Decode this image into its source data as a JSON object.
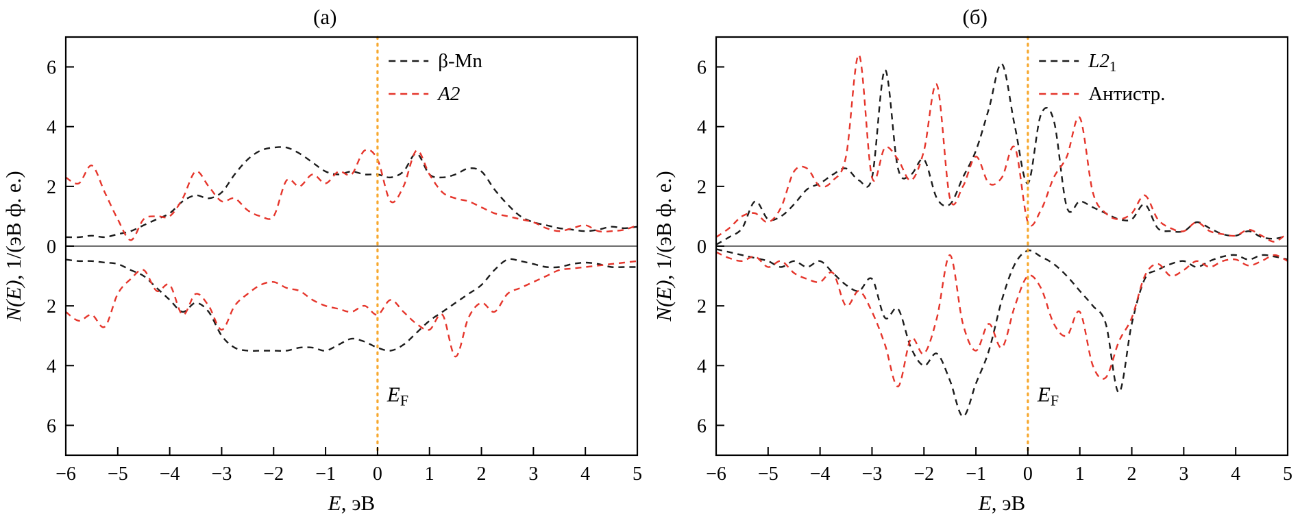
{
  "figure": {
    "background": "#ffffff"
  },
  "colors": {
    "black_series": "#1c1c1c",
    "red_series": "#e5352b",
    "fermi_line": "#f7a82e",
    "frame": "#000000",
    "zero_line": "#3c3c3c"
  },
  "chart_data": [
    {
      "type": "line",
      "title": "(а)",
      "xlabel": {
        "math": "E",
        "rest": ", эВ"
      },
      "ylabel": {
        "math": "N(E)",
        "rest": ", 1/(эВ ф. е.)"
      },
      "xlim": [
        -6,
        5
      ],
      "ylim": [
        -7,
        7
      ],
      "xticks": [
        -6,
        -5,
        -4,
        -3,
        -2,
        -1,
        0,
        1,
        2,
        3,
        4,
        5
      ],
      "yticks": [
        6,
        4,
        2,
        0,
        -2,
        -4,
        -6
      ],
      "grid": false,
      "legend_position": "top-right",
      "fermi": {
        "x": 0,
        "label_math": "E",
        "label_sub": "F",
        "color": "#f7a82e"
      },
      "zero_line": true,
      "x_start": -6,
      "x_step": 0.25,
      "series": [
        {
          "name": "β-Mn",
          "sub": "",
          "italic": false,
          "color": "#1c1c1c",
          "dash": "9 7",
          "up": [
            0.3,
            0.3,
            0.35,
            0.3,
            0.4,
            0.5,
            0.7,
            0.9,
            1.1,
            1.5,
            1.7,
            1.6,
            1.8,
            2.4,
            2.9,
            3.2,
            3.3,
            3.3,
            3.1,
            2.8,
            2.5,
            2.4,
            2.5,
            2.4,
            2.4,
            2.3,
            2.5,
            3.1,
            2.4,
            2.3,
            2.4,
            2.6,
            2.5,
            1.9,
            1.4,
            1.0,
            0.8,
            0.7,
            0.6,
            0.55,
            0.5,
            0.55,
            0.65,
            0.6,
            0.65
          ],
          "down": [
            0.45,
            0.5,
            0.5,
            0.55,
            0.6,
            0.8,
            1.0,
            1.4,
            1.8,
            2.2,
            1.9,
            2.2,
            3.0,
            3.4,
            3.5,
            3.5,
            3.5,
            3.5,
            3.4,
            3.4,
            3.5,
            3.3,
            3.1,
            3.2,
            3.4,
            3.5,
            3.3,
            2.9,
            2.5,
            2.2,
            1.9,
            1.6,
            1.3,
            0.8,
            0.45,
            0.5,
            0.6,
            0.7,
            0.7,
            0.6,
            0.55,
            0.6,
            0.7,
            0.7,
            0.7
          ]
        },
        {
          "name": "A2",
          "sub": "",
          "italic": true,
          "color": "#e5352b",
          "dash": "9 7",
          "up": [
            2.3,
            2.1,
            2.7,
            1.8,
            0.9,
            0.2,
            0.9,
            1.0,
            1.0,
            1.6,
            2.5,
            2.0,
            1.5,
            1.6,
            1.2,
            1.0,
            1.0,
            2.2,
            2.0,
            2.4,
            2.1,
            2.5,
            2.4,
            3.2,
            2.9,
            1.5,
            2.0,
            3.2,
            2.4,
            1.8,
            1.6,
            1.5,
            1.3,
            1.1,
            1.0,
            0.9,
            0.8,
            0.6,
            0.5,
            0.6,
            0.7,
            0.5,
            0.5,
            0.55,
            0.7
          ],
          "down": [
            2.2,
            2.5,
            2.3,
            2.7,
            1.6,
            1.1,
            0.8,
            1.5,
            1.3,
            2.3,
            1.6,
            2.0,
            2.8,
            2.0,
            1.6,
            1.3,
            1.2,
            1.4,
            1.5,
            1.8,
            2.0,
            2.1,
            2.2,
            2.0,
            2.3,
            1.8,
            2.2,
            2.6,
            2.8,
            2.3,
            3.7,
            2.4,
            1.9,
            2.2,
            1.6,
            1.4,
            1.2,
            1.0,
            0.8,
            0.75,
            0.7,
            0.65,
            0.6,
            0.55,
            0.5
          ]
        }
      ]
    },
    {
      "type": "line",
      "title": "(б)",
      "xlabel": {
        "math": "E",
        "rest": ", эВ"
      },
      "ylabel": {
        "math": "N(E)",
        "rest": ", 1/(эВ ф. е.)"
      },
      "xlim": [
        -6,
        5
      ],
      "ylim": [
        -7,
        7
      ],
      "xticks": [
        -6,
        -5,
        -4,
        -3,
        -2,
        -1,
        0,
        1,
        2,
        3,
        4,
        5
      ],
      "yticks": [
        6,
        4,
        2,
        0,
        -2,
        -4,
        -6
      ],
      "grid": false,
      "legend_position": "top-right",
      "fermi": {
        "x": 0,
        "label_math": "E",
        "label_sub": "F",
        "color": "#f7a82e"
      },
      "zero_line": true,
      "x_start": -6,
      "x_step": 0.25,
      "series": [
        {
          "name": "L2",
          "sub": "1",
          "italic": true,
          "color": "#1c1c1c",
          "dash": "9 7",
          "up": [
            0.05,
            0.3,
            0.6,
            1.5,
            0.9,
            1.0,
            1.4,
            1.9,
            2.1,
            2.4,
            2.6,
            2.2,
            2.3,
            5.9,
            2.6,
            2.4,
            2.9,
            1.6,
            1.4,
            2.3,
            3.2,
            4.6,
            6.1,
            4.0,
            2.1,
            4.4,
            4.2,
            1.3,
            1.5,
            1.3,
            1.1,
            0.9,
            0.9,
            1.4,
            0.6,
            0.5,
            0.5,
            0.8,
            0.6,
            0.4,
            0.35,
            0.5,
            0.3,
            0.25,
            0.35
          ],
          "down": [
            0.1,
            0.2,
            0.3,
            0.4,
            0.5,
            0.7,
            0.5,
            0.7,
            0.5,
            0.9,
            1.3,
            1.5,
            1.1,
            2.4,
            2.1,
            3.4,
            4.0,
            3.6,
            4.5,
            5.7,
            4.6,
            3.5,
            1.8,
            0.6,
            0.15,
            0.35,
            0.6,
            1.0,
            1.5,
            2.0,
            2.6,
            4.9,
            2.6,
            1.1,
            0.8,
            0.6,
            0.5,
            0.7,
            0.5,
            0.35,
            0.3,
            0.45,
            0.3,
            0.35,
            0.45
          ]
        },
        {
          "name": "Антистр.",
          "sub": "",
          "italic": false,
          "color": "#e5352b",
          "dash": "9 7",
          "up": [
            0.3,
            0.6,
            1.0,
            1.1,
            0.8,
            1.3,
            2.5,
            2.6,
            2.0,
            2.2,
            3.0,
            6.4,
            2.3,
            3.3,
            2.9,
            2.2,
            3.2,
            5.4,
            1.6,
            2.0,
            3.0,
            2.1,
            2.3,
            3.3,
            0.8,
            1.2,
            2.3,
            3.0,
            4.3,
            1.8,
            1.1,
            0.9,
            1.1,
            1.7,
            0.9,
            0.6,
            0.5,
            0.8,
            0.5,
            0.4,
            0.35,
            0.55,
            0.35,
            0.15,
            0.45
          ],
          "down": [
            0.2,
            0.4,
            0.5,
            0.35,
            0.7,
            0.5,
            0.9,
            1.1,
            1.2,
            0.9,
            2.0,
            1.5,
            2.2,
            3.3,
            4.7,
            3.1,
            3.6,
            2.4,
            0.3,
            2.6,
            3.5,
            2.6,
            3.4,
            2.0,
            1.0,
            1.4,
            2.6,
            3.0,
            2.2,
            4.0,
            4.4,
            3.2,
            2.4,
            1.0,
            0.6,
            1.0,
            0.8,
            0.5,
            0.7,
            0.5,
            0.45,
            0.65,
            0.5,
            0.3,
            0.5
          ]
        }
      ]
    }
  ]
}
